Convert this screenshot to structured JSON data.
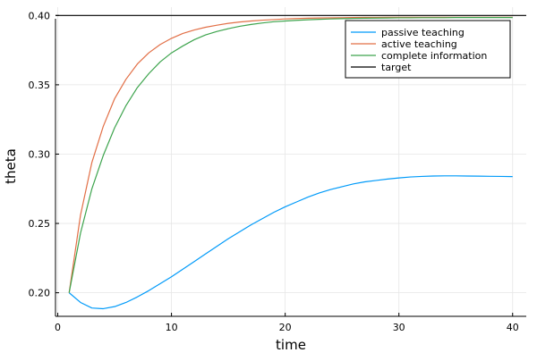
{
  "chart_data": {
    "type": "line",
    "title": "",
    "xlabel": "time",
    "ylabel": "theta",
    "xlim": [
      -0.2,
      41.2
    ],
    "ylim": [
      0.183,
      0.406
    ],
    "x_ticks": [
      0,
      10,
      20,
      30,
      40
    ],
    "y_ticks": [
      0.2,
      0.25,
      0.3,
      0.35,
      0.4
    ],
    "x_tick_labels": [
      "0",
      "10",
      "20",
      "30",
      "40"
    ],
    "y_tick_labels": [
      "0.20",
      "0.25",
      "0.30",
      "0.35",
      "0.40"
    ],
    "grid": true,
    "legend_position": "top-right",
    "x": [
      1,
      2,
      3,
      4,
      5,
      6,
      7,
      8,
      9,
      10,
      11,
      12,
      13,
      14,
      15,
      16,
      17,
      18,
      19,
      20,
      21,
      22,
      23,
      24,
      25,
      26,
      27,
      28,
      29,
      30,
      31,
      32,
      33,
      34,
      35,
      36,
      37,
      38,
      39,
      40
    ],
    "series": [
      {
        "name": "passive teaching",
        "color": "#009af9",
        "values": [
          0.2,
          0.193,
          0.189,
          0.1885,
          0.19,
          0.193,
          0.197,
          0.2015,
          0.2065,
          0.2115,
          0.217,
          0.2225,
          0.228,
          0.2335,
          0.239,
          0.244,
          0.249,
          0.2535,
          0.258,
          0.262,
          0.2655,
          0.269,
          0.272,
          0.2745,
          0.2765,
          0.2785,
          0.28,
          0.281,
          0.282,
          0.2828,
          0.2835,
          0.2839,
          0.2842,
          0.2843,
          0.2843,
          0.2842,
          0.2841,
          0.284,
          0.2839,
          0.2838
        ]
      },
      {
        "name": "active teaching",
        "color": "#e26f46",
        "values": [
          0.2,
          0.256,
          0.294,
          0.32,
          0.34,
          0.354,
          0.365,
          0.373,
          0.379,
          0.3835,
          0.387,
          0.3895,
          0.3915,
          0.393,
          0.3943,
          0.3953,
          0.396,
          0.3966,
          0.397,
          0.3975,
          0.3978,
          0.398,
          0.3982,
          0.3983,
          0.3984,
          0.3985,
          0.3986,
          0.3986,
          0.3987,
          0.3987,
          0.3987,
          0.3987,
          0.3987,
          0.3987,
          0.3987,
          0.3987,
          0.3987,
          0.3987,
          0.3987,
          0.3987
        ]
      },
      {
        "name": "complete information",
        "color": "#3da44d",
        "values": [
          0.2,
          0.243,
          0.275,
          0.299,
          0.319,
          0.335,
          0.348,
          0.358,
          0.3665,
          0.373,
          0.378,
          0.3825,
          0.386,
          0.3885,
          0.3905,
          0.3922,
          0.3935,
          0.3946,
          0.3955,
          0.396,
          0.3965,
          0.3969,
          0.3972,
          0.3975,
          0.3977,
          0.3979,
          0.398,
          0.3981,
          0.3982,
          0.3983,
          0.3983,
          0.3984,
          0.3984,
          0.3984,
          0.3985,
          0.3985,
          0.3985,
          0.3985,
          0.3985,
          0.3985
        ]
      },
      {
        "name": "target",
        "color": "#000000",
        "constant": 0.4
      }
    ]
  }
}
